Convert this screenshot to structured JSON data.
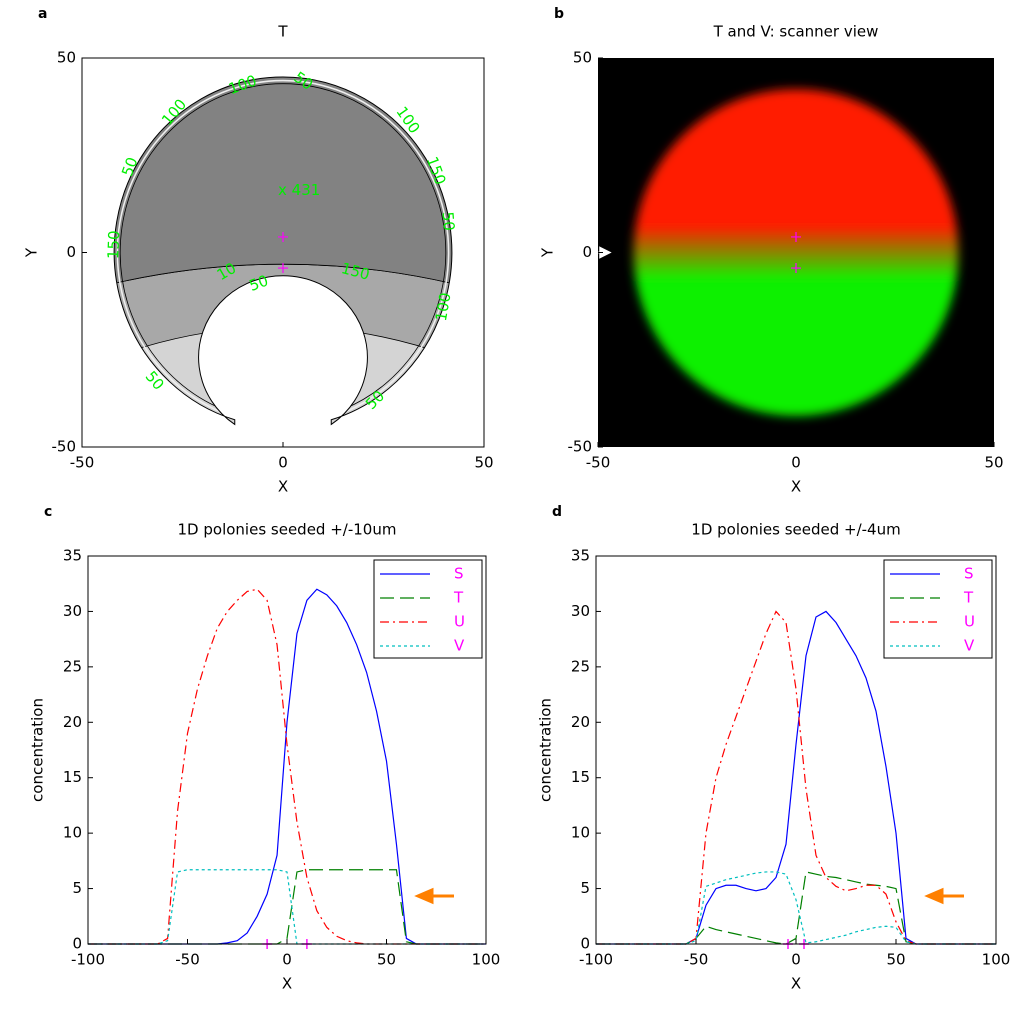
{
  "chart_data": [
    {
      "type": "contour",
      "panel_label": "a",
      "title": "T",
      "x_label": "X",
      "y_label": "Y",
      "xlim": [
        -50,
        50
      ],
      "ylim": [
        -50,
        50
      ],
      "xticks": [
        -50,
        0,
        50
      ],
      "yticks": [
        -50,
        0,
        50
      ],
      "frame": true,
      "peak_label": "x 431",
      "label_color": "#00ee00",
      "contour_labels": [
        50,
        100,
        100,
        50,
        150,
        10,
        50,
        150,
        100,
        150,
        50,
        100,
        50,
        50
      ],
      "markers": {
        "color": "#ff00ff",
        "x": [
          0,
          0
        ],
        "y": [
          4,
          -4
        ]
      }
    },
    {
      "type": "image",
      "panel_label": "b",
      "title": "T and V: scanner view",
      "x_label": "X",
      "y_label": "Y",
      "xlim": [
        -50,
        50
      ],
      "ylim": [
        -50,
        50
      ],
      "xticks": [
        -50,
        0,
        50
      ],
      "yticks": [
        -50,
        0,
        50
      ],
      "frame": false,
      "colors": [
        "#ff1a00",
        "#10f000"
      ],
      "markers": {
        "color": "#ff00ff",
        "x": [
          0,
          0
        ],
        "y": [
          4,
          -4
        ]
      }
    },
    {
      "type": "line",
      "panel_label": "c",
      "title": "1D polonies seeded +/-10um",
      "x_label": "X",
      "y_label": "concentration",
      "xlim": [
        -100,
        100
      ],
      "ylim": [
        0,
        35
      ],
      "xticks": [
        -100,
        -50,
        0,
        50,
        100
      ],
      "yticks": [
        0,
        5,
        10,
        15,
        20,
        25,
        30,
        35
      ],
      "frame": true,
      "legend": "upper right",
      "legend_text_color": "#ff00ff",
      "seed_markers": {
        "color": "#ff00ff",
        "x": [
          -10,
          10
        ]
      },
      "x": [
        -100,
        -95,
        -90,
        -85,
        -80,
        -75,
        -70,
        -65,
        -60,
        -55,
        -50,
        -45,
        -40,
        -35,
        -30,
        -25,
        -20,
        -15,
        -10,
        -5,
        0,
        5,
        10,
        15,
        20,
        25,
        30,
        35,
        40,
        45,
        50,
        55,
        60,
        65,
        70,
        75,
        80,
        85,
        90,
        95,
        100
      ],
      "series": [
        {
          "name": "S",
          "color": "#0000ff",
          "style": "solid",
          "values": [
            0,
            0,
            0,
            0,
            0,
            0,
            0,
            0,
            0,
            0,
            0,
            0,
            0,
            0,
            0.1,
            0.3,
            1,
            2.5,
            4.5,
            8,
            20,
            28,
            31,
            32,
            31.5,
            30.5,
            29,
            27,
            24.5,
            21,
            16.5,
            9,
            0.5,
            0,
            0,
            0,
            0,
            0,
            0,
            0,
            0
          ]
        },
        {
          "name": "T",
          "color": "#008000",
          "style": "dashed",
          "values": [
            0,
            0,
            0,
            0,
            0,
            0,
            0,
            0,
            0,
            0,
            0,
            0,
            0,
            0,
            0,
            0,
            0,
            0,
            0,
            0,
            0.5,
            6.5,
            6.7,
            6.7,
            6.7,
            6.7,
            6.7,
            6.7,
            6.7,
            6.7,
            6.7,
            6.7,
            0.2,
            0,
            0,
            0,
            0,
            0,
            0,
            0,
            0
          ]
        },
        {
          "name": "U",
          "color": "#ff0000",
          "style": "dashdot",
          "values": [
            0,
            0,
            0,
            0,
            0,
            0,
            0,
            0,
            0.5,
            12,
            19,
            23,
            26,
            28.5,
            30,
            31,
            31.8,
            32,
            31,
            27,
            18,
            11,
            6,
            3,
            1.5,
            0.7,
            0.3,
            0.1,
            0,
            0,
            0,
            0,
            0,
            0,
            0,
            0,
            0,
            0,
            0,
            0,
            0
          ]
        },
        {
          "name": "V",
          "color": "#00bfbf",
          "style": "dotted",
          "values": [
            0,
            0,
            0,
            0,
            0,
            0,
            0,
            0,
            0.3,
            6.5,
            6.7,
            6.7,
            6.7,
            6.7,
            6.7,
            6.7,
            6.7,
            6.7,
            6.7,
            6.7,
            6.5,
            0,
            0,
            0,
            0,
            0,
            0,
            0,
            0,
            0,
            0,
            0,
            0,
            0,
            0,
            0,
            0,
            0,
            0,
            0,
            0
          ]
        }
      ]
    },
    {
      "type": "line",
      "panel_label": "d",
      "title": "1D polonies seeded +/-4um",
      "x_label": "X",
      "y_label": "concentration",
      "xlim": [
        -100,
        100
      ],
      "ylim": [
        0,
        35
      ],
      "xticks": [
        -100,
        -50,
        0,
        50,
        100
      ],
      "yticks": [
        0,
        5,
        10,
        15,
        20,
        25,
        30,
        35
      ],
      "frame": true,
      "legend": "upper right",
      "legend_text_color": "#ff00ff",
      "seed_markers": {
        "color": "#ff00ff",
        "x": [
          -4,
          4
        ]
      },
      "x": [
        -100,
        -95,
        -90,
        -85,
        -80,
        -75,
        -70,
        -65,
        -60,
        -55,
        -50,
        -45,
        -40,
        -35,
        -30,
        -25,
        -20,
        -15,
        -10,
        -5,
        0,
        5,
        10,
        15,
        20,
        25,
        30,
        35,
        40,
        45,
        50,
        55,
        60,
        65,
        70,
        75,
        80,
        85,
        90,
        95,
        100
      ],
      "series": [
        {
          "name": "S",
          "color": "#0000ff",
          "style": "solid",
          "values": [
            0,
            0,
            0,
            0,
            0,
            0,
            0,
            0,
            0,
            0,
            0.5,
            3.5,
            5,
            5.3,
            5.3,
            5,
            4.8,
            5,
            6,
            9,
            18,
            26,
            29.5,
            30,
            29,
            27.5,
            26,
            24,
            21,
            16,
            10,
            0.5,
            0,
            0,
            0,
            0,
            0,
            0,
            0,
            0,
            0
          ]
        },
        {
          "name": "T",
          "color": "#008000",
          "style": "dashed",
          "values": [
            0,
            0,
            0,
            0,
            0,
            0,
            0,
            0,
            0,
            0,
            0.5,
            1.6,
            1.3,
            1.1,
            0.9,
            0.7,
            0.5,
            0.3,
            0.1,
            0,
            0.5,
            6.5,
            6.3,
            6.1,
            6,
            5.8,
            5.6,
            5.4,
            5.3,
            5.2,
            5,
            0.2,
            0,
            0,
            0,
            0,
            0,
            0,
            0,
            0,
            0
          ]
        },
        {
          "name": "U",
          "color": "#ff0000",
          "style": "dashdot",
          "values": [
            0,
            0,
            0,
            0,
            0,
            0,
            0,
            0,
            0,
            0,
            0.5,
            10,
            15,
            18,
            20.5,
            23,
            25.5,
            28,
            30,
            29,
            23,
            14,
            8,
            6,
            5.2,
            4.8,
            5,
            5.3,
            5.3,
            4.5,
            2,
            0.3,
            0,
            0,
            0,
            0,
            0,
            0,
            0,
            0,
            0
          ]
        },
        {
          "name": "V",
          "color": "#00bfbf",
          "style": "dotted",
          "values": [
            0,
            0,
            0,
            0,
            0,
            0,
            0,
            0,
            0,
            0,
            0.3,
            5.2,
            5.5,
            5.8,
            6,
            6.2,
            6.4,
            6.5,
            6.5,
            6.3,
            4,
            0.1,
            0.2,
            0.4,
            0.6,
            0.8,
            1.1,
            1.3,
            1.5,
            1.6,
            1.5,
            0.2,
            0,
            0,
            0,
            0,
            0,
            0,
            0,
            0,
            0
          ]
        }
      ]
    }
  ]
}
